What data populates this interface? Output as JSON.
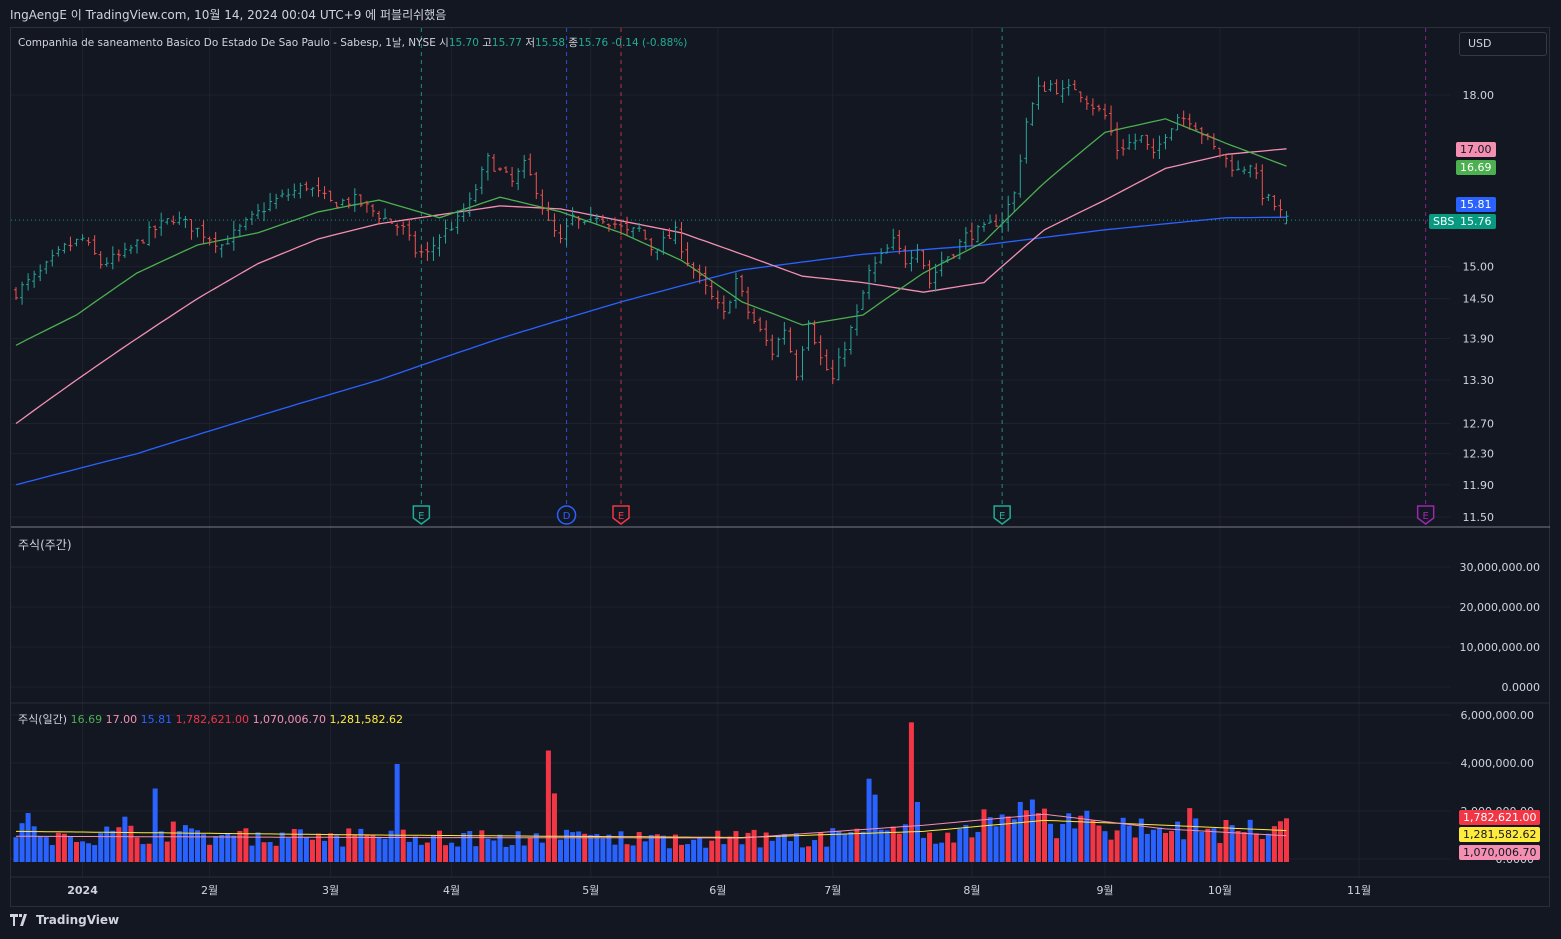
{
  "caption": "IngAengE 이 TradingView.com, 10월 14, 2024 00:04 UTC+9 에 퍼블리쉬했음",
  "currency": "USD",
  "legend": {
    "symbol": "Companhia de saneamento Basico Do Estado De Sao Paulo - Sabesp, 1날, NYSE",
    "o_label": "시",
    "o": "15.70",
    "h_label": "고",
    "h": "15.77",
    "l_label": "저",
    "l": "15.58",
    "c_label": "종",
    "c": "15.76",
    "change": "-0.14 (-0.88%)"
  },
  "weekly_pane_title": "주식(주간)",
  "daily_pane": {
    "title": "주식(일간)",
    "values": [
      "16.69",
      "17.00",
      "15.81",
      "1,782,621.00",
      "1,070,006.70",
      "1,281,582.62"
    ]
  },
  "footer_brand": "TradingView",
  "colors": {
    "up": "#26a69a",
    "down": "#ef5350",
    "ma_green": "#4caf50",
    "ma_pink": "#f48fb1",
    "ma_blue": "#2962ff",
    "vol_blue": "#2962ff",
    "vol_red": "#f23645",
    "vline_teal": "#22ab94",
    "vline_red": "#f23645",
    "vline_purple": "#9c27b0"
  },
  "chart_data": [
    {
      "type": "candlestick",
      "title": "Companhia de saneamento Basico Do Estado De Sao Paulo - Sabesp, 1날, NYSE",
      "ylim": [
        11.5,
        18.6
      ],
      "y_scale": "log",
      "price_ticks": [
        "18.00",
        "15.00",
        "14.50",
        "13.90",
        "13.30",
        "12.70",
        "12.30",
        "11.90",
        "11.50"
      ],
      "x_ticks": [
        "2024",
        "2월",
        "3월",
        "4월",
        "5월",
        "6월",
        "7월",
        "8월",
        "9월",
        "10월",
        "11월"
      ],
      "last_price": 15.76,
      "symbol_tag": "SBS",
      "price_tags": [
        {
          "value": "17.00",
          "color": "#f48fb1"
        },
        {
          "value": "16.69",
          "color": "#4caf50"
        },
        {
          "value": "15.81",
          "color": "#2962ff"
        },
        {
          "value": "15.76",
          "color": "#089981"
        }
      ],
      "close_path": [
        [
          0,
          14.6
        ],
        [
          4,
          14.9
        ],
        [
          8,
          15.3
        ],
        [
          11,
          15.45
        ],
        [
          14,
          15.05
        ],
        [
          18,
          15.2
        ],
        [
          22,
          15.55
        ],
        [
          26,
          15.8
        ],
        [
          30,
          15.6
        ],
        [
          34,
          15.35
        ],
        [
          38,
          15.7
        ],
        [
          42,
          16.05
        ],
        [
          45,
          16.2
        ],
        [
          48,
          16.35
        ],
        [
          52,
          16.05
        ],
        [
          56,
          16.1
        ],
        [
          60,
          15.85
        ],
        [
          64,
          15.6
        ],
        [
          66,
          15.25
        ],
        [
          68,
          15.2
        ],
        [
          70,
          15.5
        ],
        [
          73,
          15.75
        ],
        [
          75,
          16.05
        ],
        [
          78,
          16.8
        ],
        [
          80,
          16.6
        ],
        [
          82,
          16.4
        ],
        [
          84,
          16.7
        ],
        [
          86,
          16.3
        ],
        [
          88,
          15.7
        ],
        [
          90,
          15.4
        ],
        [
          92,
          15.8
        ],
        [
          94,
          15.65
        ],
        [
          96,
          15.85
        ],
        [
          99,
          15.7
        ],
        [
          101,
          15.55
        ],
        [
          103,
          15.6
        ],
        [
          105,
          15.3
        ],
        [
          107,
          15.4
        ],
        [
          109,
          15.55
        ],
        [
          111,
          15.1
        ],
        [
          113,
          14.8
        ],
        [
          115,
          14.5
        ],
        [
          117,
          14.25
        ],
        [
          119,
          14.8
        ],
        [
          121,
          14.3
        ],
        [
          123,
          14.0
        ],
        [
          125,
          13.7
        ],
        [
          127,
          14.05
        ],
        [
          129,
          13.4
        ],
        [
          131,
          14.2
        ],
        [
          133,
          13.6
        ],
        [
          135,
          13.3
        ],
        [
          137,
          13.8
        ],
        [
          139,
          14.25
        ],
        [
          141,
          14.9
        ],
        [
          143,
          15.15
        ],
        [
          145,
          15.4
        ],
        [
          147,
          15.1
        ],
        [
          149,
          15.35
        ],
        [
          151,
          14.75
        ],
        [
          153,
          15.1
        ],
        [
          155,
          15.25
        ],
        [
          157,
          15.5
        ],
        [
          160,
          15.6
        ],
        [
          163,
          15.8
        ],
        [
          165,
          16.2
        ],
        [
          167,
          17.5
        ],
        [
          169,
          18.1
        ],
        [
          171,
          18.2
        ],
        [
          173,
          18.05
        ],
        [
          175,
          18.15
        ],
        [
          178,
          17.8
        ],
        [
          180,
          17.6
        ],
        [
          182,
          17.0
        ],
        [
          184,
          17.1
        ],
        [
          186,
          17.2
        ],
        [
          188,
          16.85
        ],
        [
          190,
          17.3
        ],
        [
          192,
          17.6
        ],
        [
          194,
          17.55
        ],
        [
          196,
          17.3
        ],
        [
          198,
          17.0
        ],
        [
          200,
          16.8
        ],
        [
          202,
          16.6
        ],
        [
          204,
          16.75
        ],
        [
          206,
          16.2
        ],
        [
          208,
          16.0
        ],
        [
          210,
          15.76
        ]
      ],
      "sma_green_path": [
        [
          0,
          13.8
        ],
        [
          10,
          14.25
        ],
        [
          20,
          14.9
        ],
        [
          30,
          15.35
        ],
        [
          40,
          15.55
        ],
        [
          50,
          15.9
        ],
        [
          60,
          16.1
        ],
        [
          70,
          15.8
        ],
        [
          80,
          16.15
        ],
        [
          90,
          15.9
        ],
        [
          100,
          15.55
        ],
        [
          110,
          15.1
        ],
        [
          120,
          14.45
        ],
        [
          130,
          14.1
        ],
        [
          140,
          14.25
        ],
        [
          150,
          14.9
        ],
        [
          160,
          15.4
        ],
        [
          170,
          16.4
        ],
        [
          180,
          17.3
        ],
        [
          190,
          17.55
        ],
        [
          200,
          17.1
        ],
        [
          210,
          16.69
        ]
      ],
      "sma_pink_path": [
        [
          0,
          12.7
        ],
        [
          10,
          13.3
        ],
        [
          20,
          13.9
        ],
        [
          30,
          14.5
        ],
        [
          40,
          15.05
        ],
        [
          50,
          15.45
        ],
        [
          60,
          15.7
        ],
        [
          70,
          15.85
        ],
        [
          80,
          16.0
        ],
        [
          90,
          15.95
        ],
        [
          100,
          15.75
        ],
        [
          110,
          15.55
        ],
        [
          120,
          15.2
        ],
        [
          130,
          14.85
        ],
        [
          140,
          14.75
        ],
        [
          150,
          14.6
        ],
        [
          160,
          14.75
        ],
        [
          170,
          15.6
        ],
        [
          180,
          16.1
        ],
        [
          190,
          16.65
        ],
        [
          200,
          16.9
        ],
        [
          210,
          17.0
        ]
      ],
      "sma_blue_path": [
        [
          0,
          11.9
        ],
        [
          20,
          12.3
        ],
        [
          40,
          12.8
        ],
        [
          60,
          13.3
        ],
        [
          80,
          13.9
        ],
        [
          100,
          14.45
        ],
        [
          120,
          14.95
        ],
        [
          140,
          15.2
        ],
        [
          160,
          15.35
        ],
        [
          180,
          15.6
        ],
        [
          200,
          15.8
        ],
        [
          210,
          15.81
        ]
      ],
      "events": [
        {
          "type": "E",
          "index": 67,
          "color": "#22ab94"
        },
        {
          "type": "D",
          "index": 91,
          "color": "#2962ff"
        },
        {
          "type": "E",
          "index": 100,
          "color": "#f23645"
        },
        {
          "type": "E",
          "index": 163,
          "color": "#22ab94"
        },
        {
          "type": "E",
          "index": 233,
          "color": "#9c27b0"
        }
      ]
    },
    {
      "type": "bar",
      "title": "주식(주간)",
      "y_ticks": [
        "30,000,000.00",
        "20,000,000.00",
        "10,000,000.00",
        "0.0000"
      ],
      "values": []
    },
    {
      "type": "bar",
      "title": "주식(일간)",
      "ylim": [
        0,
        6000000
      ],
      "y_ticks": [
        "6,000,000.00",
        "4,000,000.00",
        "2,000,000.00",
        "0.0000"
      ],
      "last_values": {
        "volume": "1,782,621.00",
        "ma_pink": "1,070,006.70",
        "ma_yellow": "1,281,582.62"
      },
      "spikes": [
        {
          "index": 2,
          "value": 2000000
        },
        {
          "index": 18,
          "value": 1850000
        },
        {
          "index": 23,
          "value": 3000000
        },
        {
          "index": 26,
          "value": 1650000
        },
        {
          "index": 63,
          "value": 4000000
        },
        {
          "index": 88,
          "value": 4550000
        },
        {
          "index": 89,
          "value": 2800000
        },
        {
          "index": 141,
          "value": 3400000
        },
        {
          "index": 142,
          "value": 2750000
        },
        {
          "index": 148,
          "value": 5700000
        },
        {
          "index": 149,
          "value": 2450000
        },
        {
          "index": 160,
          "value": 2150000
        },
        {
          "index": 166,
          "value": 2450000
        },
        {
          "index": 168,
          "value": 2550000
        },
        {
          "index": 194,
          "value": 2200000
        },
        {
          "index": 210,
          "value": 1782621
        }
      ],
      "ma_pink_path": [
        [
          0,
          1050000
        ],
        [
          60,
          1000000
        ],
        [
          120,
          980000
        ],
        [
          150,
          1500000
        ],
        [
          170,
          1950000
        ],
        [
          190,
          1350000
        ],
        [
          210,
          1070006
        ]
      ],
      "ma_yellow_path": [
        [
          0,
          1250000
        ],
        [
          60,
          1100000
        ],
        [
          120,
          1000000
        ],
        [
          150,
          1250000
        ],
        [
          170,
          1700000
        ],
        [
          190,
          1500000
        ],
        [
          210,
          1281582
        ]
      ]
    }
  ]
}
